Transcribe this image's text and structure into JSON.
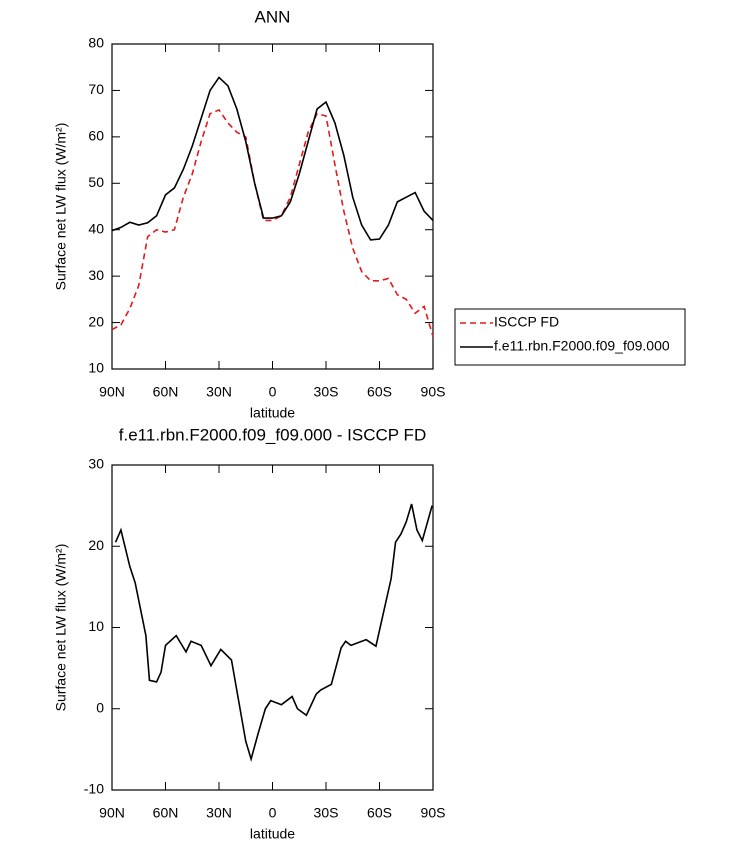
{
  "chart_data": [
    {
      "type": "line",
      "title": "ANN",
      "xlabel": "latitude",
      "ylabel": "Surface net LW flux (W/m²)",
      "x": [
        90,
        85,
        80,
        75,
        70,
        65,
        60,
        55,
        50,
        45,
        40,
        35,
        30,
        25,
        20,
        15,
        10,
        5,
        0,
        -5,
        -10,
        -15,
        -20,
        -25,
        -30,
        -35,
        -40,
        -45,
        -50,
        -55,
        -60,
        -65,
        -70,
        -75,
        -80,
        -85,
        -90
      ],
      "series": [
        {
          "name": "ISCCP FD",
          "color": "#e41a1c",
          "dashed": true,
          "values": [
            18.5,
            19.5,
            23,
            28,
            38.5,
            40,
            39.5,
            40,
            47,
            52,
            59,
            65,
            65.8,
            63,
            61,
            60,
            50,
            42,
            42,
            43,
            47,
            54,
            61,
            65,
            64.5,
            54,
            44,
            36,
            31,
            29,
            29,
            29.5,
            26,
            25,
            22,
            23.5,
            17
          ]
        },
        {
          "name": "f.e11.rbn.F2000.f09_f09.000",
          "color": "#000000",
          "dashed": false,
          "values": [
            39.8,
            40.5,
            41.6,
            41,
            41.5,
            43,
            47.5,
            49,
            53,
            58,
            64,
            70,
            72.8,
            71,
            66,
            59,
            50,
            42.5,
            42.5,
            43,
            46,
            52,
            59,
            66,
            67.5,
            63,
            56,
            47,
            41,
            37.8,
            38,
            41,
            46,
            47,
            48,
            44,
            42
          ]
        }
      ],
      "xlim": [
        90,
        -90
      ],
      "xticks": [
        {
          "value": 90,
          "label": "90N"
        },
        {
          "value": 60,
          "label": "60N"
        },
        {
          "value": 30,
          "label": "30N"
        },
        0,
        {
          "value": -30,
          "label": "30S"
        },
        {
          "value": -60,
          "label": "60S"
        },
        {
          "value": -90,
          "label": "90S"
        }
      ],
      "ylim": [
        10,
        80
      ],
      "yticks": [
        10,
        20,
        30,
        40,
        50,
        60,
        70,
        80
      ],
      "legend": "right"
    },
    {
      "type": "line",
      "title": "f.e11.rbn.F2000.f09_f09.000 - ISCCP FD",
      "xlabel": "latitude",
      "ylabel": "Surface net LW flux (W/m²)",
      "x": [
        88,
        85,
        80,
        77,
        71,
        69,
        65,
        62.5,
        60,
        54,
        48.5,
        45.7,
        40,
        34.5,
        29,
        23,
        19,
        15,
        12,
        8,
        4,
        1,
        -5,
        -11,
        -14,
        -19,
        -24.5,
        -27,
        -33,
        -38.5,
        -41,
        -44,
        -52.5,
        -58,
        -66.5,
        -69,
        -72,
        -75,
        -78,
        -81,
        -84,
        -89.5
      ],
      "series": [
        {
          "color": "#000000",
          "dashed": false,
          "values": [
            20.5,
            22,
            17.5,
            15.5,
            9,
            3.5,
            3.3,
            4.5,
            7.8,
            9,
            7,
            8.3,
            7.8,
            5.3,
            7.3,
            6,
            1,
            -4,
            -6.2,
            -3,
            0,
            1,
            0.5,
            1.5,
            0,
            -0.8,
            1.8,
            2.3,
            3,
            7.5,
            8.3,
            7.8,
            8.5,
            7.7,
            16,
            20.5,
            21.5,
            23,
            25.2,
            22,
            20.7,
            25
          ]
        }
      ],
      "xlim": [
        90,
        -90
      ],
      "xticks": [
        {
          "value": 90,
          "label": "90N"
        },
        {
          "value": 60,
          "label": "60N"
        },
        {
          "value": 30,
          "label": "30N"
        },
        0,
        {
          "value": -30,
          "label": "30S"
        },
        {
          "value": -60,
          "label": "60S"
        },
        {
          "value": -90,
          "label": "90S"
        }
      ],
      "ylim": [
        -10,
        30
      ],
      "yticks": [
        -10,
        0,
        10,
        20,
        30
      ]
    }
  ]
}
